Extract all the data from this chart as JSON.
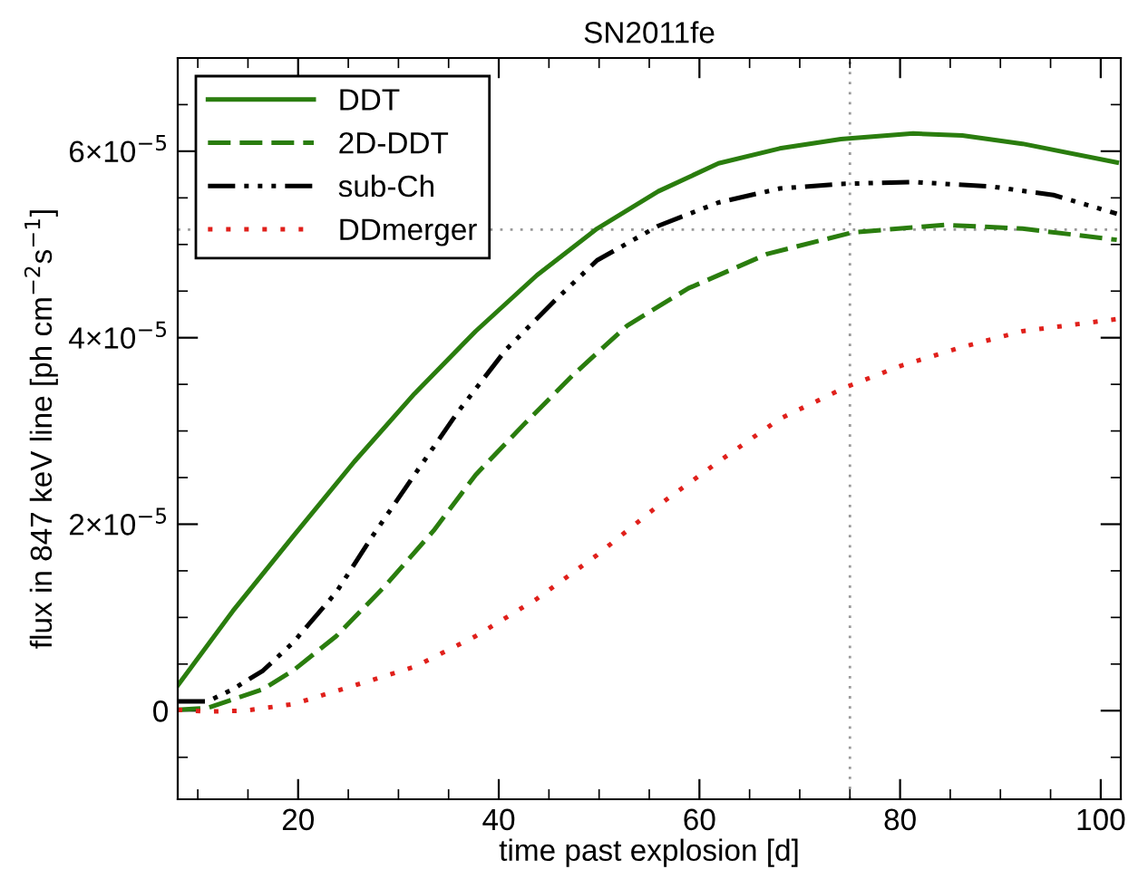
{
  "chart_data": {
    "type": "line",
    "title": "SN2011fe",
    "xlabel": "time past explosion [d]",
    "ylabel": "flux in 847 keV line [ph cm$^{−2}$s$^{−1}$]",
    "xlim": [
      8,
      102
    ],
    "xticks": [
      20,
      40,
      60,
      80,
      100
    ],
    "ylim": [
      -9.5e-06,
      7e-05
    ],
    "yticks": [
      {
        "value": 0,
        "label": "0"
      },
      {
        "value": 2e-05,
        "label": "2×10$^{−5}$"
      },
      {
        "value": 4e-05,
        "label": "4×10$^{−5}$"
      },
      {
        "value": 6e-05,
        "label": "6×10$^{−5}$"
      }
    ],
    "grid": false,
    "legend": "top left",
    "ref_lines": [
      {
        "axis": "x",
        "value": 75,
        "color": "#999999",
        "line_style": "dotted"
      },
      {
        "axis": "y",
        "value": 5.16e-05,
        "color": "#999999",
        "line_style": "dotted"
      }
    ],
    "series": [
      {
        "name": "DDT",
        "color": "#2a7d0e",
        "line_style": "solid",
        "x": [
          8,
          13.5,
          19.5,
          25.6,
          31.6,
          37.7,
          43.8,
          49.8,
          55.9,
          61.9,
          68,
          74.1,
          81.3,
          86.2,
          92.2,
          101.6
        ],
        "values": [
          2.7e-06,
          1.07e-05,
          1.87e-05,
          2.67e-05,
          3.4e-05,
          4.07e-05,
          4.67e-05,
          5.17e-05,
          5.57e-05,
          5.87e-05,
          6.03e-05,
          6.13e-05,
          6.19e-05,
          6.17e-05,
          6.08e-05,
          5.88e-05
        ]
      },
      {
        "name": "2D-DDT",
        "color": "#2a7d0e",
        "line_style": "dashed",
        "x": [
          8,
          11,
          16.5,
          19.5,
          23.8,
          28.6,
          33.5,
          37.7,
          42.5,
          47.4,
          52.8,
          58.9,
          66.8,
          75.3,
          84.4,
          92.2,
          101.6
        ],
        "values": [
          1e-07,
          3e-07,
          2.3e-06,
          4.3e-06,
          8e-06,
          1.33e-05,
          1.93e-05,
          2.53e-05,
          3.07e-05,
          3.6e-05,
          4.13e-05,
          4.53e-05,
          4.9e-05,
          5.13e-05,
          5.21e-05,
          5.17e-05,
          5.05e-05
        ]
      },
      {
        "name": "sub-Ch",
        "color": "#000000",
        "line_style": "dashdotdot",
        "x": [
          8,
          11,
          13.5,
          16.5,
          19.5,
          23.8,
          27.4,
          31.6,
          35.9,
          40.7,
          45.6,
          49.8,
          55.9,
          61.9,
          68,
          74.1,
          81.3,
          89.2,
          95.3,
          101.6
        ],
        "values": [
          1e-06,
          1e-06,
          2.3e-06,
          4.3e-06,
          7.3e-06,
          1.27e-05,
          1.87e-05,
          2.53e-05,
          3.2e-05,
          3.87e-05,
          4.4e-05,
          4.83e-05,
          5.2e-05,
          5.45e-05,
          5.6e-05,
          5.65e-05,
          5.67e-05,
          5.62e-05,
          5.53e-05,
          5.33e-05
        ]
      },
      {
        "name": "DDmerger",
        "color": "#e0201b",
        "line_style": "dotted",
        "x": [
          8,
          11,
          14.7,
          19.5,
          25.6,
          31.6,
          37.7,
          43.8,
          49.8,
          55.9,
          61.9,
          68,
          74.6,
          80.1,
          86.2,
          92.2,
          101.6
        ],
        "values": [
          1e-07,
          -1e-07,
          0,
          7e-07,
          2.7e-06,
          4.7e-06,
          8e-06,
          1.2e-05,
          1.67e-05,
          2.2e-05,
          2.67e-05,
          3.13e-05,
          3.47e-05,
          3.7e-05,
          3.9e-05,
          4.07e-05,
          4.2e-05
        ]
      }
    ]
  }
}
